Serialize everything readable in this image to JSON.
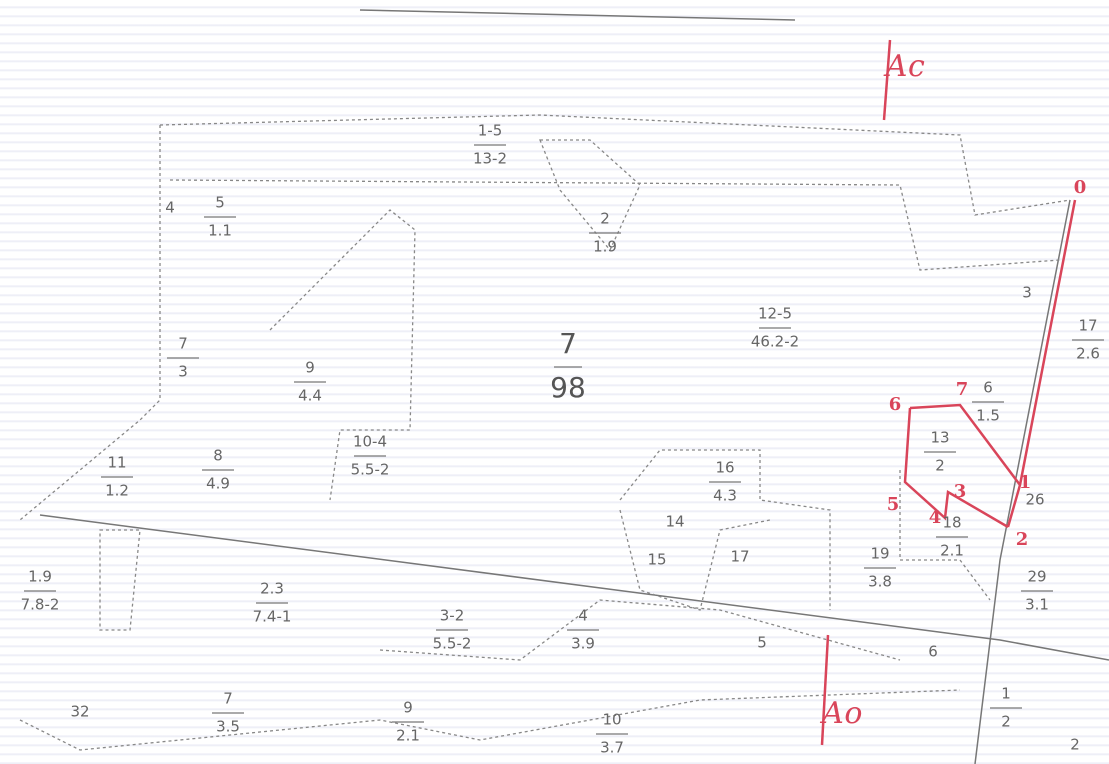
{
  "parcels": [
    {
      "number": "1-5",
      "area": "13-2"
    },
    {
      "number": "5",
      "area": "1.1"
    },
    {
      "number": "2",
      "area": "1.9"
    },
    {
      "number": "7",
      "area": "98"
    },
    {
      "number": "12-5",
      "area": "46.2-2"
    },
    {
      "number": "7",
      "area": "3"
    },
    {
      "number": "9",
      "area": "4.4"
    },
    {
      "number": "10-4",
      "area": "5.5-2"
    },
    {
      "number": "8",
      "area": "4.9"
    },
    {
      "number": "11",
      "area": "1.2"
    },
    {
      "number": "16",
      "area": "4.3"
    },
    {
      "number": "13",
      "area": "2"
    },
    {
      "number": "6",
      "area": "1.5"
    },
    {
      "number": "18",
      "area": "2.1"
    },
    {
      "number": "19",
      "area": "3.8"
    },
    {
      "number": "29",
      "area": "3.1"
    },
    {
      "number": "17",
      "area": "2.6"
    },
    {
      "number": "1.9",
      "area": "7.8-2"
    },
    {
      "number": "2.3",
      "area": "7.4-1"
    },
    {
      "number": "3-2",
      "area": "5.5-2"
    },
    {
      "number": "4",
      "area": "3.9"
    },
    {
      "number": "1",
      "area": "2"
    },
    {
      "number": "7",
      "area": "3.5"
    },
    {
      "number": "9",
      "area": "2.1"
    },
    {
      "number": "10",
      "area": "3.7"
    }
  ],
  "labels": [
    "4",
    "14",
    "15",
    "17",
    "26",
    "3",
    "5",
    "6",
    "2",
    "32"
  ],
  "points": [
    "0",
    "1",
    "2",
    "3",
    "4",
    "5",
    "6",
    "7"
  ],
  "marks": [
    "Ас",
    "Ао"
  ]
}
